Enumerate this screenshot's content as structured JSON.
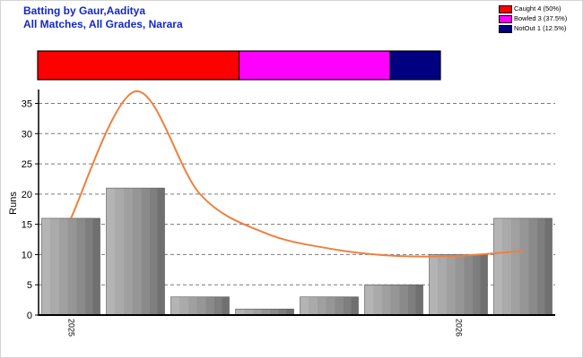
{
  "header": {
    "title_line1": "Batting by Gaur,Aaditya",
    "title_line2": "All Matches, All Grades, Narara"
  },
  "legend": [
    {
      "label": "Caught 4 (50%)",
      "color": "#ff0000"
    },
    {
      "label": "Bowled 3 (37.5%)",
      "color": "#ff00ff"
    },
    {
      "label": "NotOut 1 (12.5%)",
      "color": "#000080"
    }
  ],
  "chart_data": [
    {
      "type": "bar",
      "name": "dismissal-breakdown",
      "segments": [
        {
          "label": "Caught",
          "count": 4,
          "percent": 50,
          "color": "#ff0000"
        },
        {
          "label": "Bowled",
          "count": 3,
          "percent": 37.5,
          "color": "#ff00ff"
        },
        {
          "label": "NotOut",
          "count": 1,
          "percent": 12.5,
          "color": "#000080"
        }
      ]
    },
    {
      "type": "bar",
      "ylabel": "Runs",
      "ylim": [
        0,
        37
      ],
      "yticks": [
        0,
        5,
        10,
        15,
        20,
        25,
        30,
        35
      ],
      "grid": true,
      "x_tick_labels": [
        {
          "index": 0,
          "label": "2025"
        },
        {
          "index": 6,
          "label": "2026"
        }
      ],
      "series": [
        {
          "type": "bar",
          "values": [
            16,
            21,
            3,
            1,
            3,
            5,
            10,
            16
          ],
          "color": "#a0a0a0"
        },
        {
          "type": "line",
          "values": [
            16,
            37,
            20,
            13.6,
            11,
            9.8,
            9.8,
            10.6
          ],
          "color": "#ee8040"
        }
      ]
    }
  ]
}
